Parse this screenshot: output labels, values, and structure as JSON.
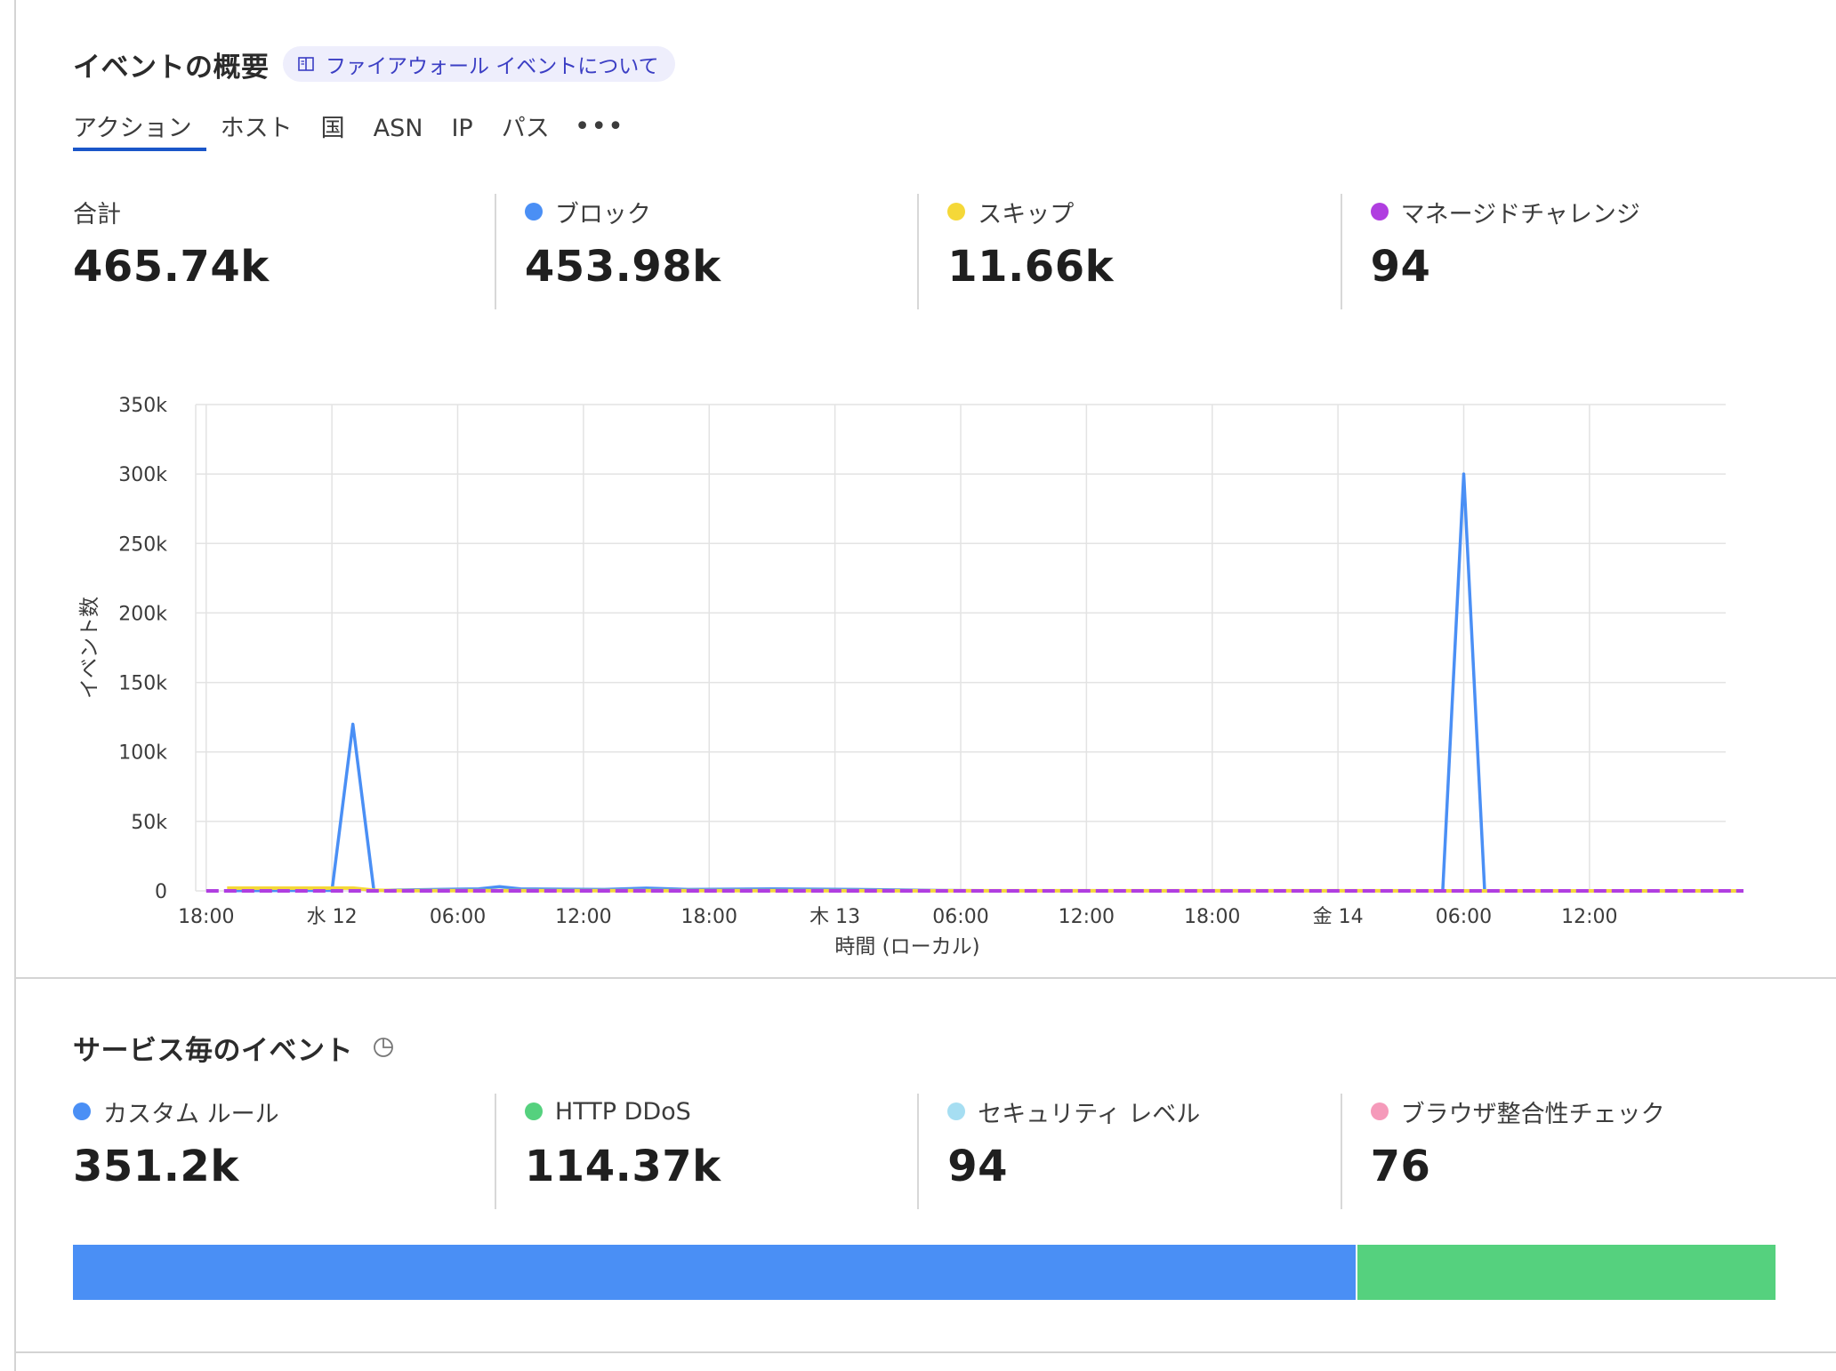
{
  "overview": {
    "title": "イベントの概要",
    "doc_link": "ファイアウォール イベントについて",
    "tabs": [
      "アクション",
      "ホスト",
      "国",
      "ASN",
      "IP",
      "パス"
    ],
    "more": "•••",
    "stats": [
      {
        "label": "合計",
        "value": "465.74k",
        "color": null
      },
      {
        "label": "ブロック",
        "value": "453.98k",
        "color": "#4a8ff5"
      },
      {
        "label": "スキップ",
        "value": "11.66k",
        "color": "#f5d838"
      },
      {
        "label": "マネージドチャレンジ",
        "value": "94",
        "color": "#b03ee0"
      }
    ]
  },
  "chart_data": {
    "type": "line",
    "ylabel": "イベント数",
    "xlabel": "時間 (ローカル)",
    "ylim": [
      0,
      350000
    ],
    "yticks": [
      "0",
      "50k",
      "100k",
      "150k",
      "200k",
      "250k",
      "300k",
      "350k"
    ],
    "xticks": [
      "18:00",
      "水 12",
      "06:00",
      "12:00",
      "18:00",
      "木 13",
      "06:00",
      "12:00",
      "18:00",
      "金 14",
      "06:00",
      "12:00"
    ],
    "x_hours": [
      -1,
      0,
      1,
      2,
      3,
      4,
      5,
      6,
      7,
      8,
      9,
      10,
      11,
      12,
      13,
      14,
      15,
      16,
      17,
      18,
      19,
      20,
      21,
      22,
      23,
      24,
      25,
      26,
      27,
      28,
      29,
      30,
      31,
      32,
      33,
      34,
      35,
      36,
      37,
      38,
      39,
      40,
      41,
      42,
      43,
      44,
      45,
      46,
      47,
      48,
      49,
      50,
      51,
      52,
      53,
      54,
      55,
      56,
      57,
      58,
      59,
      60,
      61,
      62,
      63,
      64,
      65,
      66,
      67,
      68,
      69,
      70,
      71,
      72
    ],
    "grid": true,
    "series": [
      {
        "name": "ブロック",
        "color": "#4a8ff5",
        "points": [
          [
            0,
            200
          ],
          [
            5,
            300
          ],
          [
            6,
            120000
          ],
          [
            7,
            300
          ],
          [
            10,
            1000
          ],
          [
            12,
            1500
          ],
          [
            13,
            3000
          ],
          [
            14,
            1500
          ],
          [
            18,
            1000
          ],
          [
            20,
            2000
          ],
          [
            22,
            1000
          ],
          [
            26,
            1500
          ],
          [
            30,
            1000
          ],
          [
            34,
            300
          ],
          [
            36,
            100
          ],
          [
            58,
            100
          ],
          [
            59,
            300000
          ],
          [
            60,
            100
          ],
          [
            72,
            100
          ]
        ]
      },
      {
        "name": "スキップ",
        "color": "#f5d838",
        "points": [
          [
            0,
            2000
          ],
          [
            6,
            2000
          ],
          [
            7,
            500
          ],
          [
            8,
            200
          ],
          [
            72,
            0
          ]
        ]
      },
      {
        "name": "マネージドチャレンジ",
        "color": "#b03ee0",
        "points": [
          [
            -1,
            0
          ],
          [
            73,
            0
          ]
        ]
      }
    ]
  },
  "services": {
    "title": "サービス毎のイベント",
    "stats": [
      {
        "label": "カスタム ルール",
        "value": "351.2k",
        "color": "#4a8ff5"
      },
      {
        "label": "HTTP DDoS",
        "value": "114.37k",
        "color": "#55d17e"
      },
      {
        "label": "セキュリティ レベル",
        "value": "94",
        "color": "#a6def2"
      },
      {
        "label": "ブラウザ整合性チェック",
        "value": "76",
        "color": "#f59aba"
      }
    ],
    "bar": [
      {
        "name": "カスタム ルール",
        "fraction": 0.7541,
        "color": "#4a8ff5"
      },
      {
        "name": "HTTP DDoS",
        "fraction": 0.2456,
        "color": "#55d17e"
      }
    ]
  }
}
